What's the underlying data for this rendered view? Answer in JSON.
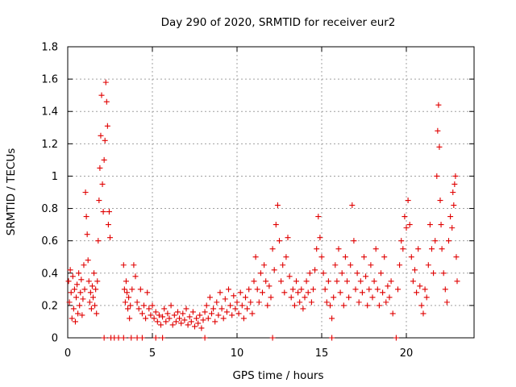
{
  "chart_data": {
    "type": "scatter",
    "title": "Day 290 of 2020, SRMTID for receiver eur2",
    "xlabel": "GPS time / hours",
    "ylabel": "SRMTID / TECUs",
    "xlim": [
      0,
      24
    ],
    "ylim": [
      0,
      1.8
    ],
    "xticks": [
      0,
      5,
      10,
      15,
      20
    ],
    "xtick_labels": [
      "0",
      "5",
      "10",
      "15",
      "20"
    ],
    "yticks": [
      0,
      0.2,
      0.4,
      0.6,
      0.8,
      1.0,
      1.2,
      1.4,
      1.6,
      1.8
    ],
    "ytick_labels": [
      "0",
      "0.2",
      "0.4",
      "0.6",
      "0.8",
      "1",
      "1.2",
      "1.4",
      "1.6",
      "1.8"
    ],
    "grid": true,
    "marker": "+",
    "color": "#e00000",
    "series": [
      {
        "name": "SRMTID",
        "points": [
          [
            0.05,
            0.35
          ],
          [
            0.1,
            0.22
          ],
          [
            0.15,
            0.42
          ],
          [
            0.2,
            0.28
          ],
          [
            0.25,
            0.12
          ],
          [
            0.3,
            0.38
          ],
          [
            0.35,
            0.18
          ],
          [
            0.4,
            0.3
          ],
          [
            0.45,
            0.1
          ],
          [
            0.5,
            0.25
          ],
          [
            0.55,
            0.33
          ],
          [
            0.6,
            0.15
          ],
          [
            0.65,
            0.4
          ],
          [
            0.7,
            0.2
          ],
          [
            0.75,
            0.28
          ],
          [
            0.8,
            0.36
          ],
          [
            0.85,
            0.14
          ],
          [
            0.9,
            0.24
          ],
          [
            0.95,
            0.45
          ],
          [
            1.0,
            0.3
          ],
          [
            1.05,
            0.9
          ],
          [
            1.1,
            0.75
          ],
          [
            1.15,
            0.64
          ],
          [
            1.2,
            0.48
          ],
          [
            1.25,
            0.35
          ],
          [
            1.3,
            0.22
          ],
          [
            1.35,
            0.28
          ],
          [
            1.4,
            0.18
          ],
          [
            1.45,
            0.32
          ],
          [
            1.5,
            0.25
          ],
          [
            1.55,
            0.4
          ],
          [
            1.6,
            0.2
          ],
          [
            1.65,
            0.3
          ],
          [
            1.7,
            0.15
          ],
          [
            1.75,
            0.35
          ],
          [
            1.8,
            0.6
          ],
          [
            1.85,
            0.85
          ],
          [
            1.9,
            1.05
          ],
          [
            1.95,
            1.25
          ],
          [
            2.0,
            1.5
          ],
          [
            2.05,
            0.95
          ],
          [
            2.1,
            0.78
          ],
          [
            2.15,
            1.1
          ],
          [
            2.2,
            1.22
          ],
          [
            2.25,
            1.58
          ],
          [
            2.3,
            1.46
          ],
          [
            2.35,
            1.31
          ],
          [
            2.4,
            0.7
          ],
          [
            2.45,
            0.78
          ],
          [
            2.5,
            0.62
          ],
          [
            3.3,
            0.45
          ],
          [
            3.35,
            0.3
          ],
          [
            3.4,
            0.22
          ],
          [
            3.45,
            0.35
          ],
          [
            3.5,
            0.28
          ],
          [
            3.55,
            0.18
          ],
          [
            3.6,
            0.25
          ],
          [
            3.65,
            0.12
          ],
          [
            3.7,
            0.2
          ],
          [
            3.8,
            0.3
          ],
          [
            3.9,
            0.45
          ],
          [
            4.0,
            0.38
          ],
          [
            4.1,
            0.22
          ],
          [
            4.2,
            0.18
          ],
          [
            4.3,
            0.3
          ],
          [
            4.4,
            0.15
          ],
          [
            4.5,
            0.2
          ],
          [
            4.6,
            0.12
          ],
          [
            4.7,
            0.28
          ],
          [
            4.8,
            0.18
          ],
          [
            4.9,
            0.14
          ],
          [
            5.0,
            0.2
          ],
          [
            5.1,
            0.12
          ],
          [
            5.2,
            0.16
          ],
          [
            5.3,
            0.1
          ],
          [
            5.4,
            0.14
          ],
          [
            5.5,
            0.08
          ],
          [
            5.6,
            0.13
          ],
          [
            5.7,
            0.18
          ],
          [
            5.8,
            0.1
          ],
          [
            5.9,
            0.15
          ],
          [
            6.0,
            0.12
          ],
          [
            6.1,
            0.2
          ],
          [
            6.2,
            0.08
          ],
          [
            6.3,
            0.14
          ],
          [
            6.4,
            0.1
          ],
          [
            6.5,
            0.16
          ],
          [
            6.6,
            0.12
          ],
          [
            6.7,
            0.09
          ],
          [
            6.8,
            0.15
          ],
          [
            6.9,
            0.11
          ],
          [
            7.0,
            0.18
          ],
          [
            7.1,
            0.08
          ],
          [
            7.2,
            0.13
          ],
          [
            7.3,
            0.1
          ],
          [
            7.4,
            0.16
          ],
          [
            7.5,
            0.07
          ],
          [
            7.6,
            0.12
          ],
          [
            7.7,
            0.09
          ],
          [
            7.8,
            0.14
          ],
          [
            7.9,
            0.06
          ],
          [
            8.0,
            0.11
          ],
          [
            8.1,
            0.16
          ],
          [
            8.2,
            0.2
          ],
          [
            8.3,
            0.12
          ],
          [
            8.4,
            0.25
          ],
          [
            8.5,
            0.15
          ],
          [
            8.6,
            0.18
          ],
          [
            8.7,
            0.1
          ],
          [
            8.8,
            0.22
          ],
          [
            8.9,
            0.14
          ],
          [
            9.0,
            0.28
          ],
          [
            9.1,
            0.18
          ],
          [
            9.2,
            0.12
          ],
          [
            9.3,
            0.24
          ],
          [
            9.4,
            0.16
          ],
          [
            9.5,
            0.3
          ],
          [
            9.6,
            0.2
          ],
          [
            9.7,
            0.14
          ],
          [
            9.8,
            0.26
          ],
          [
            9.9,
            0.18
          ],
          [
            10.0,
            0.22
          ],
          [
            10.1,
            0.15
          ],
          [
            10.2,
            0.28
          ],
          [
            10.3,
            0.2
          ],
          [
            10.4,
            0.12
          ],
          [
            10.5,
            0.25
          ],
          [
            10.6,
            0.18
          ],
          [
            10.7,
            0.3
          ],
          [
            10.8,
            0.22
          ],
          [
            10.9,
            0.15
          ],
          [
            11.0,
            0.35
          ],
          [
            11.1,
            0.5
          ],
          [
            11.2,
            0.3
          ],
          [
            11.3,
            0.22
          ],
          [
            11.4,
            0.4
          ],
          [
            11.5,
            0.28
          ],
          [
            11.6,
            0.45
          ],
          [
            11.7,
            0.35
          ],
          [
            11.8,
            0.2
          ],
          [
            11.9,
            0.32
          ],
          [
            12.0,
            0.25
          ],
          [
            12.1,
            0.55
          ],
          [
            12.2,
            0.42
          ],
          [
            12.3,
            0.7
          ],
          [
            12.4,
            0.82
          ],
          [
            12.5,
            0.6
          ],
          [
            12.6,
            0.35
          ],
          [
            12.7,
            0.45
          ],
          [
            12.8,
            0.28
          ],
          [
            12.9,
            0.5
          ],
          [
            13.0,
            0.62
          ],
          [
            13.1,
            0.38
          ],
          [
            13.2,
            0.25
          ],
          [
            13.3,
            0.3
          ],
          [
            13.4,
            0.2
          ],
          [
            13.5,
            0.35
          ],
          [
            13.6,
            0.28
          ],
          [
            13.7,
            0.22
          ],
          [
            13.8,
            0.3
          ],
          [
            13.9,
            0.18
          ],
          [
            14.0,
            0.25
          ],
          [
            14.1,
            0.35
          ],
          [
            14.2,
            0.28
          ],
          [
            14.3,
            0.4
          ],
          [
            14.4,
            0.22
          ],
          [
            14.5,
            0.3
          ],
          [
            14.6,
            0.42
          ],
          [
            14.7,
            0.55
          ],
          [
            14.8,
            0.75
          ],
          [
            14.9,
            0.62
          ],
          [
            15.0,
            0.5
          ],
          [
            15.1,
            0.4
          ],
          [
            15.2,
            0.3
          ],
          [
            15.3,
            0.22
          ],
          [
            15.4,
            0.35
          ],
          [
            15.5,
            0.2
          ],
          [
            15.6,
            0.12
          ],
          [
            15.7,
            0.25
          ],
          [
            15.8,
            0.45
          ],
          [
            15.9,
            0.35
          ],
          [
            16.0,
            0.55
          ],
          [
            16.1,
            0.28
          ],
          [
            16.2,
            0.4
          ],
          [
            16.3,
            0.2
          ],
          [
            16.4,
            0.5
          ],
          [
            16.5,
            0.35
          ],
          [
            16.6,
            0.25
          ],
          [
            16.7,
            0.45
          ],
          [
            16.8,
            0.82
          ],
          [
            16.9,
            0.6
          ],
          [
            17.0,
            0.3
          ],
          [
            17.1,
            0.4
          ],
          [
            17.2,
            0.22
          ],
          [
            17.3,
            0.35
          ],
          [
            17.4,
            0.28
          ],
          [
            17.5,
            0.5
          ],
          [
            17.6,
            0.38
          ],
          [
            17.7,
            0.2
          ],
          [
            17.8,
            0.3
          ],
          [
            17.9,
            0.45
          ],
          [
            18.0,
            0.25
          ],
          [
            18.1,
            0.35
          ],
          [
            18.2,
            0.55
          ],
          [
            18.3,
            0.3
          ],
          [
            18.4,
            0.2
          ],
          [
            18.5,
            0.4
          ],
          [
            18.6,
            0.28
          ],
          [
            18.7,
            0.5
          ],
          [
            18.8,
            0.22
          ],
          [
            18.9,
            0.32
          ],
          [
            19.0,
            0.25
          ],
          [
            19.1,
            0.35
          ],
          [
            19.2,
            0.15
          ],
          [
            19.5,
            0.3
          ],
          [
            19.6,
            0.45
          ],
          [
            19.7,
            0.6
          ],
          [
            19.8,
            0.55
          ],
          [
            19.9,
            0.75
          ],
          [
            20.0,
            0.68
          ],
          [
            20.1,
            0.85
          ],
          [
            20.2,
            0.7
          ],
          [
            20.3,
            0.5
          ],
          [
            20.4,
            0.35
          ],
          [
            20.5,
            0.42
          ],
          [
            20.6,
            0.28
          ],
          [
            20.7,
            0.55
          ],
          [
            20.8,
            0.32
          ],
          [
            20.9,
            0.2
          ],
          [
            21.0,
            0.15
          ],
          [
            21.1,
            0.3
          ],
          [
            21.2,
            0.25
          ],
          [
            21.3,
            0.45
          ],
          [
            21.4,
            0.7
          ],
          [
            21.5,
            0.55
          ],
          [
            21.6,
            0.4
          ],
          [
            21.7,
            0.6
          ],
          [
            21.8,
            1.0
          ],
          [
            21.85,
            1.28
          ],
          [
            21.9,
            1.44
          ],
          [
            21.95,
            1.18
          ],
          [
            22.0,
            0.85
          ],
          [
            22.05,
            0.7
          ],
          [
            22.1,
            0.55
          ],
          [
            22.2,
            0.4
          ],
          [
            22.3,
            0.3
          ],
          [
            22.4,
            0.22
          ],
          [
            22.5,
            0.6
          ],
          [
            22.6,
            0.75
          ],
          [
            22.7,
            0.68
          ],
          [
            22.75,
            0.9
          ],
          [
            22.8,
            0.82
          ],
          [
            22.85,
            0.95
          ],
          [
            22.9,
            1.0
          ],
          [
            22.95,
            0.5
          ],
          [
            23.0,
            0.35
          ]
        ]
      },
      {
        "name": "SRMTID (zero)",
        "points": [
          [
            2.15,
            0
          ],
          [
            2.55,
            0
          ],
          [
            2.75,
            0
          ],
          [
            3.0,
            0
          ],
          [
            3.3,
            0
          ],
          [
            3.75,
            0
          ],
          [
            4.1,
            0
          ],
          [
            4.4,
            0
          ],
          [
            5.2,
            0
          ],
          [
            5.6,
            0
          ],
          [
            8.1,
            0
          ],
          [
            12.1,
            0
          ],
          [
            15.6,
            0
          ],
          [
            19.4,
            0
          ]
        ]
      }
    ]
  }
}
